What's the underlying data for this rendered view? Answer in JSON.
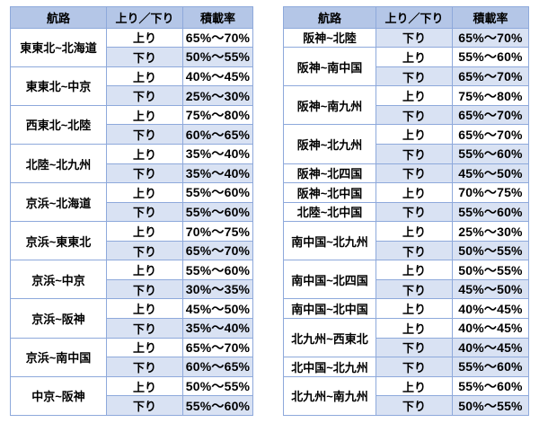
{
  "colors": {
    "header_bg": "#B4C6E7",
    "shaded_row_bg": "#D9E2F3",
    "plain_row_bg": "#FFFFFF",
    "border": "#8EA9DB",
    "text": "#000000"
  },
  "legend": {
    "up_label": "上り",
    "down_label": "下り"
  },
  "tables": [
    {
      "name": "freight-rate-table-left",
      "headers": [
        "航路",
        "上り／下り",
        "積載率"
      ],
      "groups": [
        {
          "route": "東東北~北海道",
          "rows": [
            {
              "dir": "上り",
              "rate": "65%～70%",
              "shaded": false
            },
            {
              "dir": "下り",
              "rate": "50%～55%",
              "shaded": true
            }
          ]
        },
        {
          "route": "東東北~中京",
          "rows": [
            {
              "dir": "上り",
              "rate": "40%～45%",
              "shaded": false
            },
            {
              "dir": "下り",
              "rate": "25%～30%",
              "shaded": true
            }
          ]
        },
        {
          "route": "西東北~北陸",
          "rows": [
            {
              "dir": "上り",
              "rate": "75%～80%",
              "shaded": false
            },
            {
              "dir": "下り",
              "rate": "60%～65%",
              "shaded": true
            }
          ]
        },
        {
          "route": "北陸~北九州",
          "rows": [
            {
              "dir": "上り",
              "rate": "35%～40%",
              "shaded": false
            },
            {
              "dir": "下り",
              "rate": "35%～40%",
              "shaded": true
            }
          ]
        },
        {
          "route": "京浜~北海道",
          "rows": [
            {
              "dir": "上り",
              "rate": "55%～60%",
              "shaded": false
            },
            {
              "dir": "下り",
              "rate": "55%～60%",
              "shaded": true
            }
          ]
        },
        {
          "route": "京浜~東東北",
          "rows": [
            {
              "dir": "上り",
              "rate": "70%～75%",
              "shaded": false
            },
            {
              "dir": "下り",
              "rate": "65%～70%",
              "shaded": true
            }
          ]
        },
        {
          "route": "京浜~中京",
          "rows": [
            {
              "dir": "上り",
              "rate": "55%～60%",
              "shaded": false
            },
            {
              "dir": "下り",
              "rate": "30%～35%",
              "shaded": true
            }
          ]
        },
        {
          "route": "京浜~阪神",
          "rows": [
            {
              "dir": "上り",
              "rate": "45%～50%",
              "shaded": false
            },
            {
              "dir": "下り",
              "rate": "35%～40%",
              "shaded": true
            }
          ]
        },
        {
          "route": "京浜~南中国",
          "rows": [
            {
              "dir": "上り",
              "rate": "65%～70%",
              "shaded": false
            },
            {
              "dir": "下り",
              "rate": "60%～65%",
              "shaded": true
            }
          ]
        },
        {
          "route": "中京~阪神",
          "rows": [
            {
              "dir": "上り",
              "rate": "50%～55%",
              "shaded": false
            },
            {
              "dir": "下り",
              "rate": "55%～60%",
              "shaded": true
            }
          ]
        }
      ]
    },
    {
      "name": "freight-rate-table-right",
      "headers": [
        "航路",
        "上り／下り",
        "積載率"
      ],
      "groups": [
        {
          "route": "阪神~北陸",
          "rows": [
            {
              "dir": "下り",
              "rate": "65%～70%",
              "shaded": true
            }
          ]
        },
        {
          "route": "阪神~南中国",
          "rows": [
            {
              "dir": "上り",
              "rate": "55%～60%",
              "shaded": false
            },
            {
              "dir": "下り",
              "rate": "65%～70%",
              "shaded": true
            }
          ]
        },
        {
          "route": "阪神~南九州",
          "rows": [
            {
              "dir": "上り",
              "rate": "75%～80%",
              "shaded": false
            },
            {
              "dir": "下り",
              "rate": "65%～70%",
              "shaded": true
            }
          ]
        },
        {
          "route": "阪神~北九州",
          "rows": [
            {
              "dir": "上り",
              "rate": "65%～70%",
              "shaded": false
            },
            {
              "dir": "下り",
              "rate": "55%～60%",
              "shaded": true
            }
          ]
        },
        {
          "route": "阪神~北四国",
          "rows": [
            {
              "dir": "下り",
              "rate": "45%～50%",
              "shaded": true
            }
          ]
        },
        {
          "route": "阪神~北中国",
          "rows": [
            {
              "dir": "上り",
              "rate": "70%～75%",
              "shaded": false
            }
          ]
        },
        {
          "route": "北陸~北中国",
          "rows": [
            {
              "dir": "下り",
              "rate": "55%～60%",
              "shaded": true
            }
          ]
        },
        {
          "route": "南中国~北九州",
          "rows": [
            {
              "dir": "上り",
              "rate": "25%～30%",
              "shaded": false
            },
            {
              "dir": "下り",
              "rate": "50%～55%",
              "shaded": true
            }
          ]
        },
        {
          "route": "南中国~北四国",
          "rows": [
            {
              "dir": "上り",
              "rate": "50%～55%",
              "shaded": false
            },
            {
              "dir": "下り",
              "rate": "45%～50%",
              "shaded": true
            }
          ]
        },
        {
          "route": "南中国~北中国",
          "rows": [
            {
              "dir": "上り",
              "rate": "40%～45%",
              "shaded": false
            }
          ]
        },
        {
          "route": "北九州~西東北",
          "rows": [
            {
              "dir": "上り",
              "rate": "40%～45%",
              "shaded": false
            },
            {
              "dir": "下り",
              "rate": "40%～45%",
              "shaded": true
            }
          ]
        },
        {
          "route": "北中国~北九州",
          "rows": [
            {
              "dir": "下り",
              "rate": "55%～60%",
              "shaded": true
            }
          ]
        },
        {
          "route": "北九州~南九州",
          "rows": [
            {
              "dir": "上り",
              "rate": "55%～60%",
              "shaded": false
            },
            {
              "dir": "下り",
              "rate": "50%～55%",
              "shaded": true
            }
          ]
        }
      ]
    }
  ]
}
